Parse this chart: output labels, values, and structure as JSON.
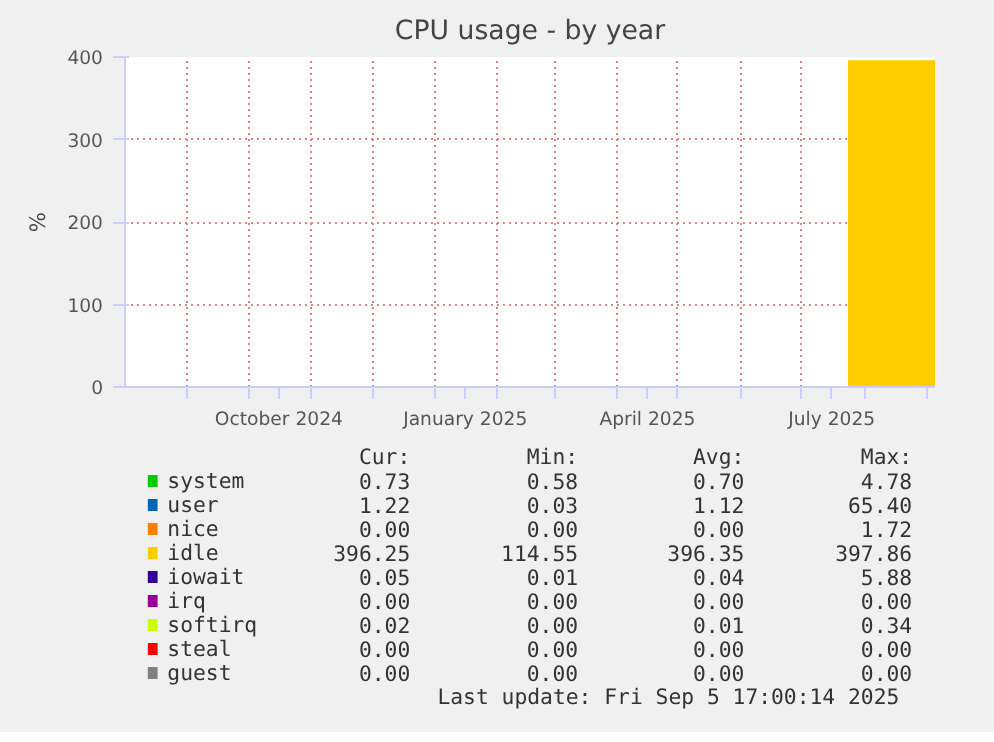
{
  "chart_data": {
    "type": "area",
    "title": "CPU usage - by year",
    "ylabel": "%",
    "xlim": [
      "2024-08-01",
      "2025-09-05"
    ],
    "ylim": [
      0,
      400
    ],
    "yticks": [
      0,
      100,
      200,
      300,
      400
    ],
    "xticks": [
      {
        "value": "2024-09-01",
        "label": null
      },
      {
        "value": "2024-10-01",
        "label": null
      },
      {
        "value": "2024-10-16",
        "label": "October 2024"
      },
      {
        "value": "2024-11-01",
        "label": null
      },
      {
        "value": "2024-12-01",
        "label": null
      },
      {
        "value": "2025-01-01",
        "label": null
      },
      {
        "value": "2025-01-16",
        "label": "January 2025"
      },
      {
        "value": "2025-02-01",
        "label": null
      },
      {
        "value": "2025-03-01",
        "label": null
      },
      {
        "value": "2025-04-01",
        "label": null
      },
      {
        "value": "2025-04-16",
        "label": "April 2025"
      },
      {
        "value": "2025-05-01",
        "label": null
      },
      {
        "value": "2025-06-01",
        "label": null
      },
      {
        "value": "2025-07-01",
        "label": null
      },
      {
        "value": "2025-07-16",
        "label": "July 2025"
      },
      {
        "value": "2025-08-01",
        "label": null
      },
      {
        "value": "2025-09-01",
        "label": null
      }
    ],
    "grid": true,
    "legend": "bottom",
    "series": [
      {
        "name": "system",
        "color": "#00cc00"
      },
      {
        "name": "user",
        "color": "#0066b3"
      },
      {
        "name": "nice",
        "color": "#ff8000"
      },
      {
        "name": "idle",
        "color": "#ffcc00",
        "x": [
          "2025-07-24",
          "2025-09-05"
        ],
        "values": [
          396,
          396
        ]
      },
      {
        "name": "iowait",
        "color": "#330099"
      },
      {
        "name": "irq",
        "color": "#990099"
      },
      {
        "name": "softirq",
        "color": "#ccff00"
      },
      {
        "name": "steal",
        "color": "#ff0000"
      },
      {
        "name": "guest",
        "color": "#808080"
      }
    ],
    "annotations": [
      "Cur:",
      "Min:",
      "Avg:",
      "Max:",
      "0.73",
      "0.58",
      "0.70",
      "4.78",
      "1.22",
      "0.03",
      "1.12",
      "65.40",
      "0.00",
      "0.00",
      "0.00",
      "1.72",
      "396.25",
      "114.55",
      "396.35",
      "397.86",
      "0.05",
      "0.01",
      "0.04",
      "5.88",
      "0.00",
      "0.00",
      "0.00",
      "0.00",
      "0.02",
      "0.00",
      "0.01",
      "0.34",
      "0.00",
      "0.00",
      "0.00",
      "0.00",
      "0.00",
      "0.00",
      "0.00",
      "0.00",
      "Last update: Fri Sep  5 17:00:14 2025"
    ]
  }
}
